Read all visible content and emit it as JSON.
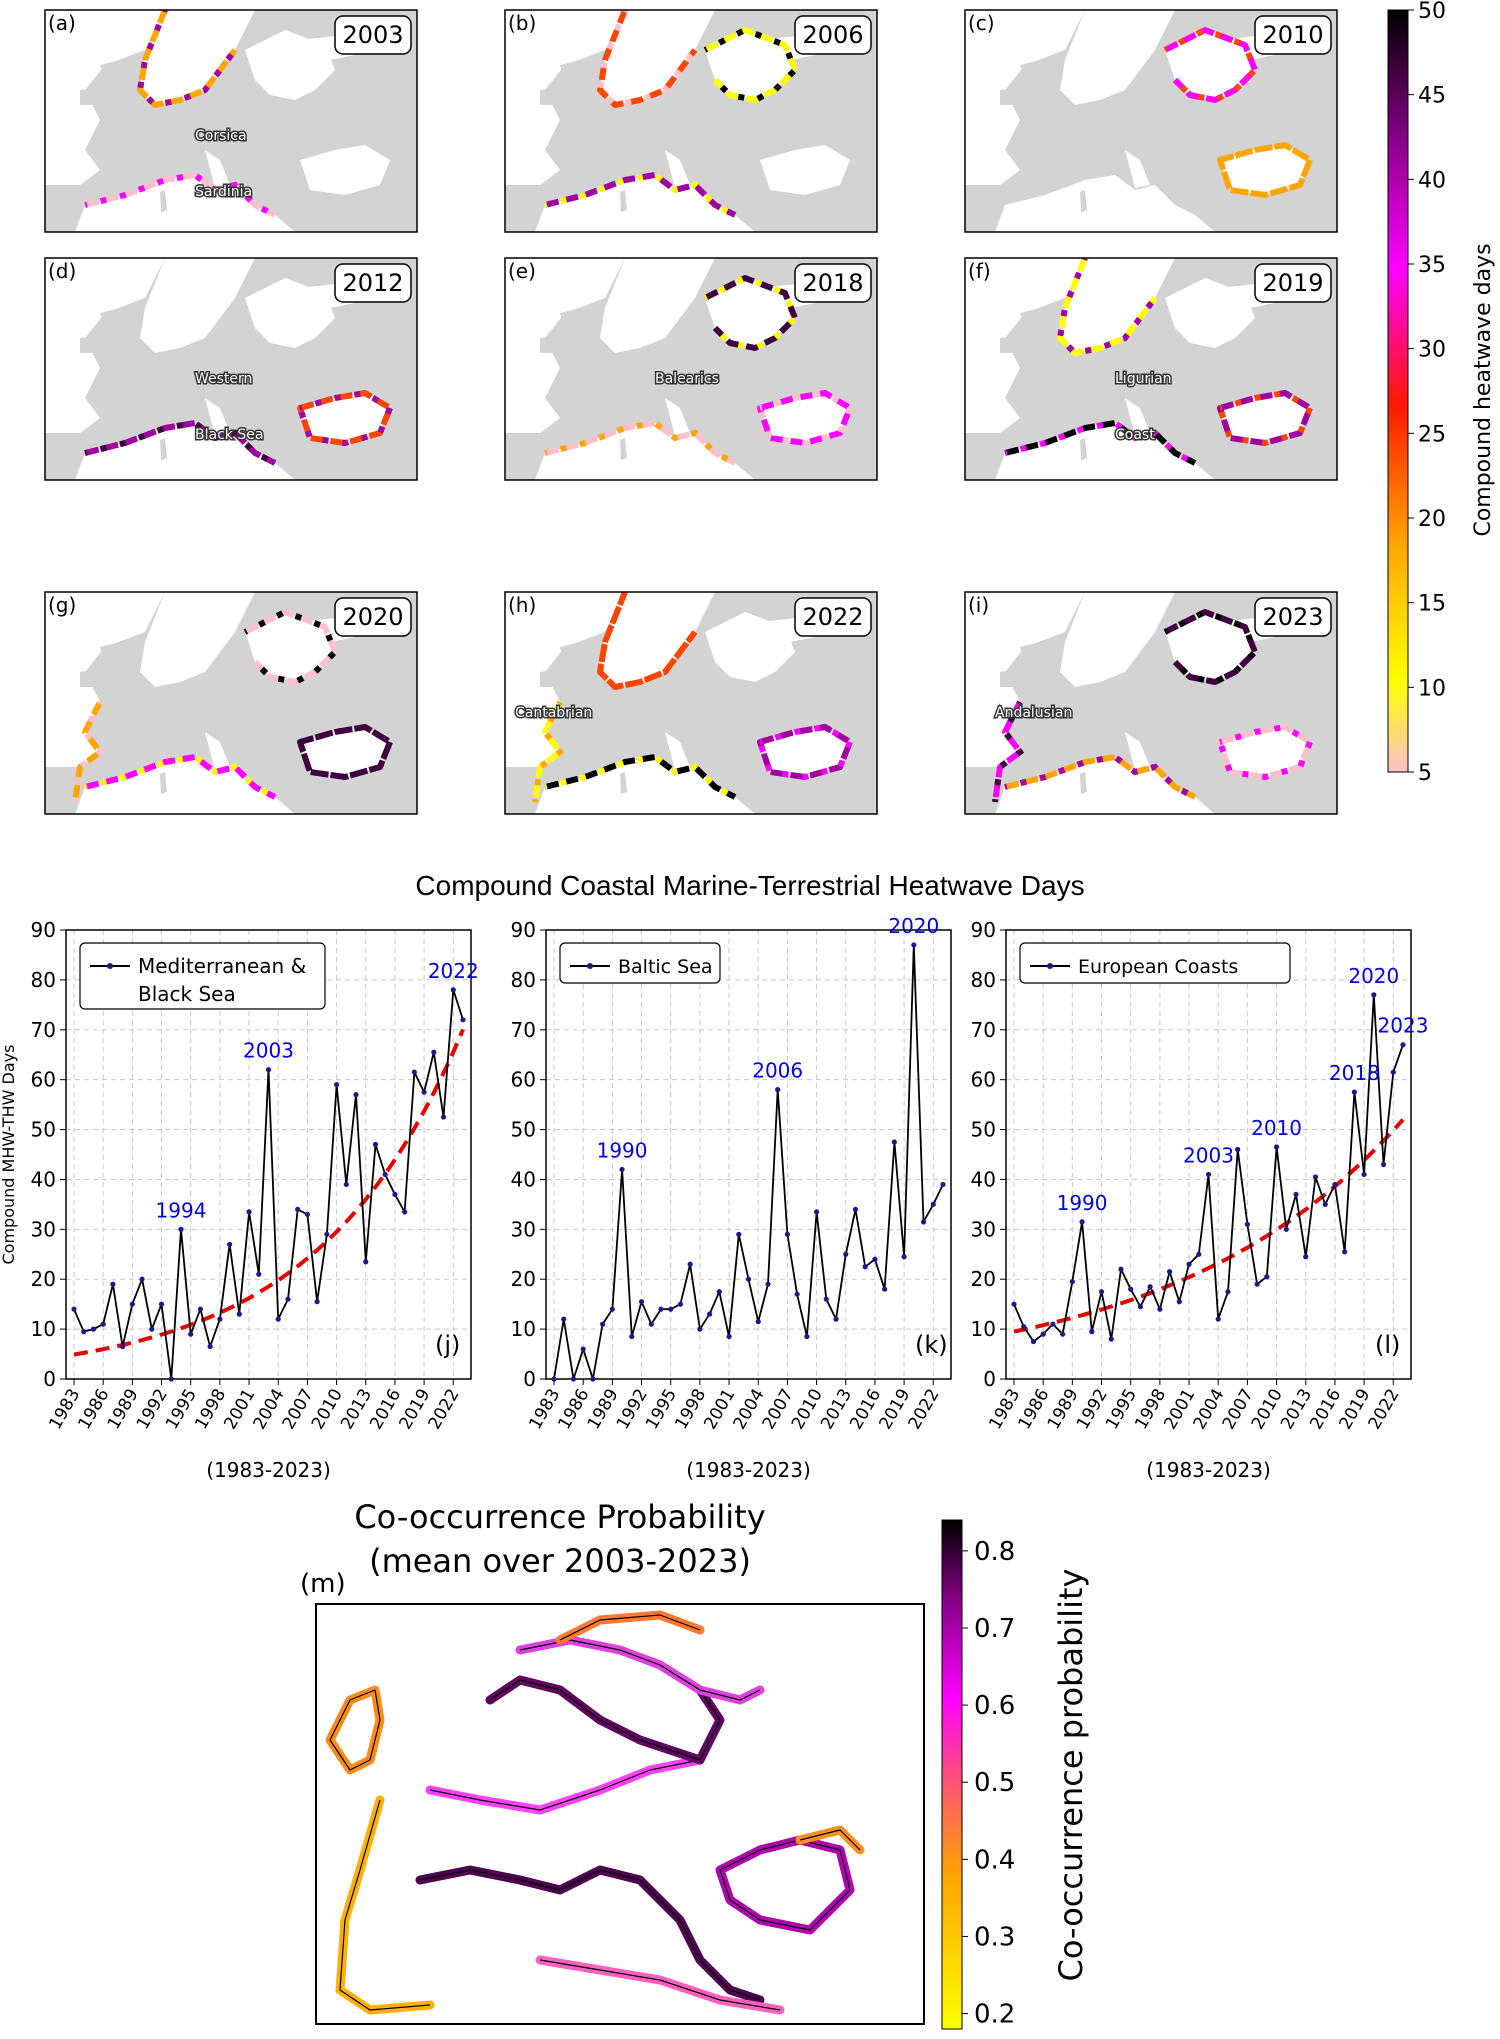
{
  "maps": [
    {
      "label": "(a)",
      "year": "2003",
      "annotations": [
        "Corsica",
        "Sardinia"
      ]
    },
    {
      "label": "(b)",
      "year": "2006",
      "annotations": []
    },
    {
      "label": "(c)",
      "year": "2010",
      "annotations": []
    },
    {
      "label": "(d)",
      "year": "2012",
      "annotations": [
        "Western",
        "Black Sea"
      ]
    },
    {
      "label": "(e)",
      "year": "2018",
      "annotations": [
        "Balearics"
      ]
    },
    {
      "label": "(f)",
      "year": "2019",
      "annotations": [
        "Ligurian",
        "Coast"
      ]
    },
    {
      "label": "(g)",
      "year": "2020",
      "annotations": []
    },
    {
      "label": "(h)",
      "year": "2022",
      "annotations": [
        "Cantabrian"
      ]
    },
    {
      "label": "(i)",
      "year": "2023",
      "annotations": [
        "Andalusian"
      ]
    }
  ],
  "colorbar_top": {
    "label": "Compound heatwave days",
    "ticks": [
      "5",
      "10",
      "15",
      "20",
      "25",
      "30",
      "35",
      "40",
      "45",
      "50"
    ],
    "range": [
      5,
      50
    ]
  },
  "mid_title": "Compound Coastal Marine-Terrestrial Heatwave Days",
  "chart_data": [
    {
      "type": "line",
      "panel_label": "(j)",
      "legend": [
        "Mediterranean &",
        "Black Sea"
      ],
      "ylabel": "Compound MHW-THW Days",
      "xlabel": "(1983-2023)",
      "ylim": [
        0,
        90
      ],
      "yticks": [
        "0",
        "10",
        "20",
        "30",
        "40",
        "50",
        "60",
        "70",
        "80",
        "90"
      ],
      "xticks": [
        "1983",
        "1986",
        "1989",
        "1992",
        "1995",
        "1998",
        "2001",
        "2004",
        "2007",
        "2010",
        "2013",
        "2016",
        "2019",
        "2022"
      ],
      "x": [
        1983,
        1984,
        1985,
        1986,
        1987,
        1988,
        1989,
        1990,
        1991,
        1992,
        1993,
        1994,
        1995,
        1996,
        1997,
        1998,
        1999,
        2000,
        2001,
        2002,
        2003,
        2004,
        2005,
        2006,
        2007,
        2008,
        2009,
        2010,
        2011,
        2012,
        2013,
        2014,
        2015,
        2016,
        2017,
        2018,
        2019,
        2020,
        2021,
        2022,
        2023
      ],
      "values": [
        14,
        9.5,
        10,
        11,
        19,
        6.5,
        15,
        20,
        10,
        15,
        0,
        30,
        9,
        14,
        6.5,
        12,
        27,
        13,
        33.5,
        21,
        62,
        12,
        16,
        34,
        33,
        15.5,
        29,
        59,
        39,
        57,
        23.5,
        47,
        41,
        37,
        33.5,
        61.5,
        57.5,
        65.5,
        52.5,
        78,
        72
      ],
      "trend": {
        "a": 4.9,
        "b": 0.0665
      },
      "peaks": [
        {
          "year": 1994,
          "label": "1994",
          "value": 30
        },
        {
          "year": 2003,
          "label": "2003",
          "value": 62
        },
        {
          "year": 2022,
          "label": "2022",
          "value": 78
        }
      ]
    },
    {
      "type": "line",
      "panel_label": "(k)",
      "legend": [
        "Baltic Sea"
      ],
      "xlabel": "(1983-2023)",
      "ylim": [
        0,
        90
      ],
      "yticks": [
        "0",
        "10",
        "20",
        "30",
        "40",
        "50",
        "60",
        "70",
        "80",
        "90"
      ],
      "xticks": [
        "1983",
        "1986",
        "1989",
        "1992",
        "1995",
        "1998",
        "2001",
        "2004",
        "2007",
        "2010",
        "2013",
        "2016",
        "2019",
        "2022"
      ],
      "x": [
        1983,
        1984,
        1985,
        1986,
        1987,
        1988,
        1989,
        1990,
        1991,
        1992,
        1993,
        1994,
        1995,
        1996,
        1997,
        1998,
        1999,
        2000,
        2001,
        2002,
        2003,
        2004,
        2005,
        2006,
        2007,
        2008,
        2009,
        2010,
        2011,
        2012,
        2013,
        2014,
        2015,
        2016,
        2017,
        2018,
        2019,
        2020,
        2021,
        2022,
        2023
      ],
      "values": [
        0,
        12,
        0,
        6,
        0,
        11,
        14,
        42,
        8.5,
        15.5,
        11,
        14,
        14,
        15,
        23,
        10,
        13,
        17.5,
        8.5,
        29,
        20,
        11.5,
        19,
        58,
        29,
        17,
        8.5,
        33.5,
        16,
        12,
        25,
        34,
        22.5,
        24,
        18,
        47.5,
        24.5,
        87,
        31.5,
        35,
        39
      ],
      "peaks": [
        {
          "year": 1990,
          "label": "1990",
          "value": 42
        },
        {
          "year": 2006,
          "label": "2006",
          "value": 58
        },
        {
          "year": 2020,
          "label": "2020",
          "value": 87
        }
      ]
    },
    {
      "type": "line",
      "panel_label": "(l)",
      "legend": [
        "European Coasts"
      ],
      "xlabel": "(1983-2023)",
      "ylim": [
        0,
        90
      ],
      "yticks": [
        "0",
        "10",
        "20",
        "30",
        "40",
        "50",
        "60",
        "70",
        "80",
        "90"
      ],
      "xticks": [
        "1983",
        "1986",
        "1989",
        "1992",
        "1995",
        "1998",
        "2001",
        "2004",
        "2007",
        "2010",
        "2013",
        "2016",
        "2019",
        "2022"
      ],
      "x": [
        1983,
        1984,
        1985,
        1986,
        1987,
        1988,
        1989,
        1990,
        1991,
        1992,
        1993,
        1994,
        1995,
        1996,
        1997,
        1998,
        1999,
        2000,
        2001,
        2002,
        2003,
        2004,
        2005,
        2006,
        2007,
        2008,
        2009,
        2010,
        2011,
        2012,
        2013,
        2014,
        2015,
        2016,
        2017,
        2018,
        2019,
        2020,
        2021,
        2022,
        2023
      ],
      "values": [
        15,
        10.5,
        7.5,
        9,
        11,
        9,
        19.5,
        31.5,
        9.5,
        17.5,
        8,
        22,
        18,
        14.5,
        18.5,
        14,
        21.5,
        15.5,
        23,
        25,
        41,
        12,
        17.5,
        46,
        31,
        19,
        20.5,
        46.5,
        30,
        37,
        24.5,
        40.5,
        35,
        39,
        25.5,
        57.5,
        41,
        77,
        43,
        61.5,
        67
      ],
      "trend": {
        "a": 9.5,
        "b": 0.0425
      },
      "peaks": [
        {
          "year": 1990,
          "label": "1990",
          "value": 31.5
        },
        {
          "year": 2003,
          "label": "2003",
          "value": 41
        },
        {
          "year": 2010,
          "label": "2010",
          "value": 46.5
        },
        {
          "year": 2018,
          "label": "2018",
          "value": 57.5
        },
        {
          "year": 2020,
          "label": "2020",
          "value": 77
        },
        {
          "year": 2023,
          "label": "2023",
          "value": 67
        }
      ]
    }
  ],
  "bottom": {
    "title_line1": "Co-occurrence Probability",
    "title_line2": "(mean over 2003-2023)",
    "label": "(m)",
    "colorbar_label": "Co-occurrence probability",
    "colorbar_ticks": [
      "0.2",
      "0.3",
      "0.4",
      "0.5",
      "0.6",
      "0.7",
      "0.8"
    ],
    "range": [
      0.18,
      0.84
    ]
  },
  "colors": {
    "land": "#d3d3d3",
    "sea": "#ffffff",
    "series_line": "#000000",
    "series_marker": "#1a1a8c",
    "trend": "#e60000",
    "peak_label": "#0000e6",
    "grid": "#c8c8c8",
    "heat_ramp": [
      "#ffc0cb",
      "#ffff00",
      "#ffa500",
      "#ff4500",
      "#ff00ff",
      "#a000a0",
      "#400040",
      "#000000"
    ]
  }
}
